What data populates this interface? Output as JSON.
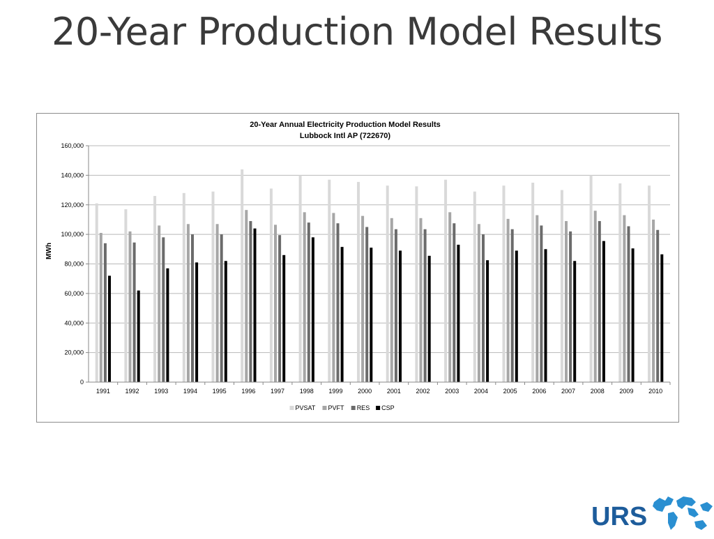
{
  "slide": {
    "title": "20-Year Production Model Results"
  },
  "colors": {
    "PVSAT": "#d9d9d9",
    "PVFT": "#a6a6a6",
    "RES": "#6b6b6b",
    "CSP": "#000000"
  },
  "logo": {
    "text": "URS",
    "color": "#1d5c9b"
  },
  "chart_data": {
    "type": "bar",
    "title": "20-Year Annual Electricity Production Model Results",
    "subtitle": "Lubbock Intl AP (722670)",
    "xlabel": "",
    "ylabel": "MWh",
    "ylim": [
      0,
      160000
    ],
    "yticks": [
      0,
      20000,
      40000,
      60000,
      80000,
      100000,
      120000,
      140000,
      160000
    ],
    "ytick_labels": [
      "0",
      "20,000",
      "40,000",
      "60,000",
      "80,000",
      "100,000",
      "120,000",
      "140,000",
      "160,000"
    ],
    "grid": true,
    "legend_position": "bottom",
    "categories": [
      "1991",
      "1992",
      "1993",
      "1994",
      "1995",
      "1996",
      "1997",
      "1998",
      "1999",
      "2000",
      "2001",
      "2002",
      "2003",
      "2004",
      "2005",
      "2006",
      "2007",
      "2008",
      "2009",
      "2010"
    ],
    "series": [
      {
        "name": "PVSAT",
        "values": [
          121000,
          117000,
          126000,
          128000,
          129000,
          144000,
          131000,
          140000,
          137000,
          135500,
          133000,
          132500,
          137000,
          129000,
          133000,
          135000,
          130000,
          140000,
          134500,
          133000
        ]
      },
      {
        "name": "PVFT",
        "values": [
          101000,
          102000,
          106000,
          107000,
          107000,
          116500,
          106500,
          115000,
          114500,
          112500,
          111000,
          111000,
          115000,
          107000,
          110500,
          113000,
          109000,
          116000,
          113000,
          110000
        ]
      },
      {
        "name": "RES",
        "values": [
          94000,
          94500,
          98000,
          100000,
          100000,
          109000,
          99500,
          108000,
          107500,
          105000,
          103500,
          103500,
          107500,
          100000,
          103500,
          106000,
          102000,
          109000,
          105500,
          103000
        ]
      },
      {
        "name": "CSP",
        "values": [
          72000,
          62000,
          77000,
          81000,
          82000,
          104000,
          86000,
          98000,
          91500,
          91000,
          89000,
          85500,
          93000,
          82500,
          89000,
          90000,
          82000,
          95500,
          90500,
          86500
        ]
      }
    ]
  }
}
